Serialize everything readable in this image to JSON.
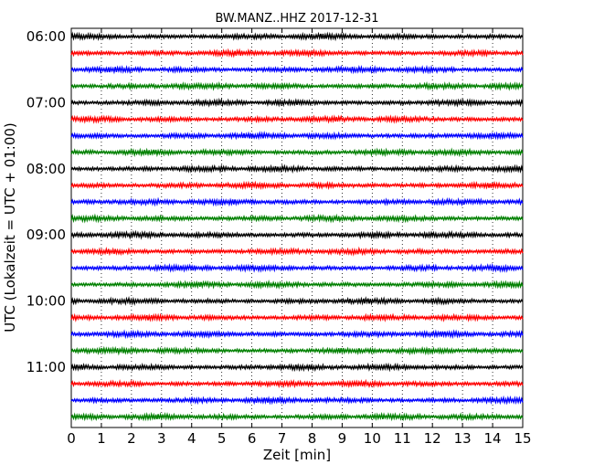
{
  "chart_data": {
    "type": "line",
    "title": "BW.MANZ..HHZ 2017-12-31",
    "xlabel": "Zeit  [min]",
    "ylabel": "UTC (Lokalzeit = UTC + 01:00)",
    "xlim": [
      0,
      15
    ],
    "x_ticks": [
      "0",
      "1",
      "2",
      "3",
      "4",
      "5",
      "6",
      "7",
      "8",
      "9",
      "10",
      "11",
      "12",
      "13",
      "14",
      "15"
    ],
    "y_tick_labels": [
      "06:00",
      "07:00",
      "08:00",
      "09:00",
      "10:00",
      "11:00"
    ],
    "trace_interval_minutes": 15,
    "trace_count": 24,
    "trace_colors": [
      "#000000",
      "#ff0000",
      "#0000ff",
      "#008000"
    ],
    "grid": "vertical dotted",
    "series_start_times": [
      "06:00",
      "06:15",
      "06:30",
      "06:45",
      "07:00",
      "07:15",
      "07:30",
      "07:45",
      "08:00",
      "08:15",
      "08:30",
      "08:45",
      "09:00",
      "09:15",
      "09:30",
      "09:45",
      "10:00",
      "10:15",
      "10:30",
      "10:45",
      "11:00",
      "11:15",
      "11:30",
      "11:45"
    ]
  }
}
